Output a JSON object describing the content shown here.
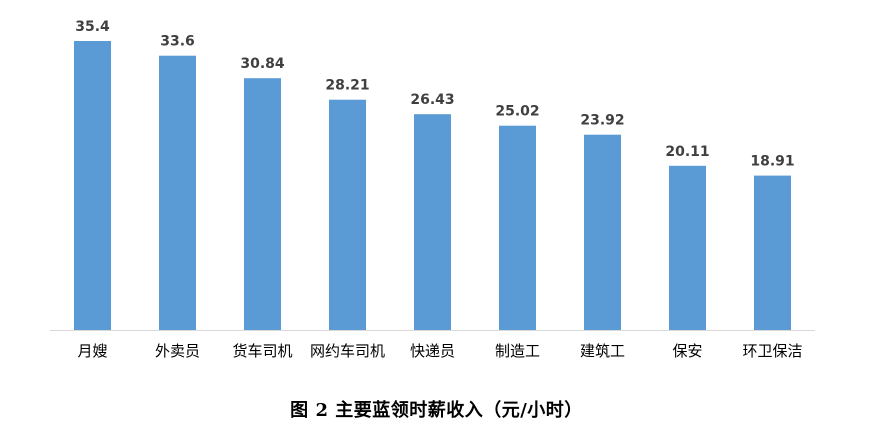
{
  "caption": "图 2  主要蓝领时薪收入（元/小时）",
  "colors": {
    "bar": "#5B9BD5",
    "axis": "#D9D9D9",
    "label": "#404040"
  },
  "chart_data": {
    "type": "bar",
    "title": "",
    "xlabel": "",
    "ylabel": "",
    "categories": [
      "月嫂",
      "外卖员",
      "货车司机",
      "网约车司机",
      "快递员",
      "制造工",
      "建筑工",
      "保安",
      "环卫保洁"
    ],
    "values": [
      35.4,
      33.6,
      30.84,
      28.21,
      26.43,
      25.02,
      23.92,
      20.11,
      18.91
    ],
    "value_labels": [
      "35.4",
      "33.6",
      "30.84",
      "28.21",
      "26.43",
      "25.02",
      "23.92",
      "20.11",
      "18.91"
    ],
    "ylim": [
      0,
      35.4
    ],
    "grid": false,
    "legend": "none",
    "data_labels": true
  }
}
